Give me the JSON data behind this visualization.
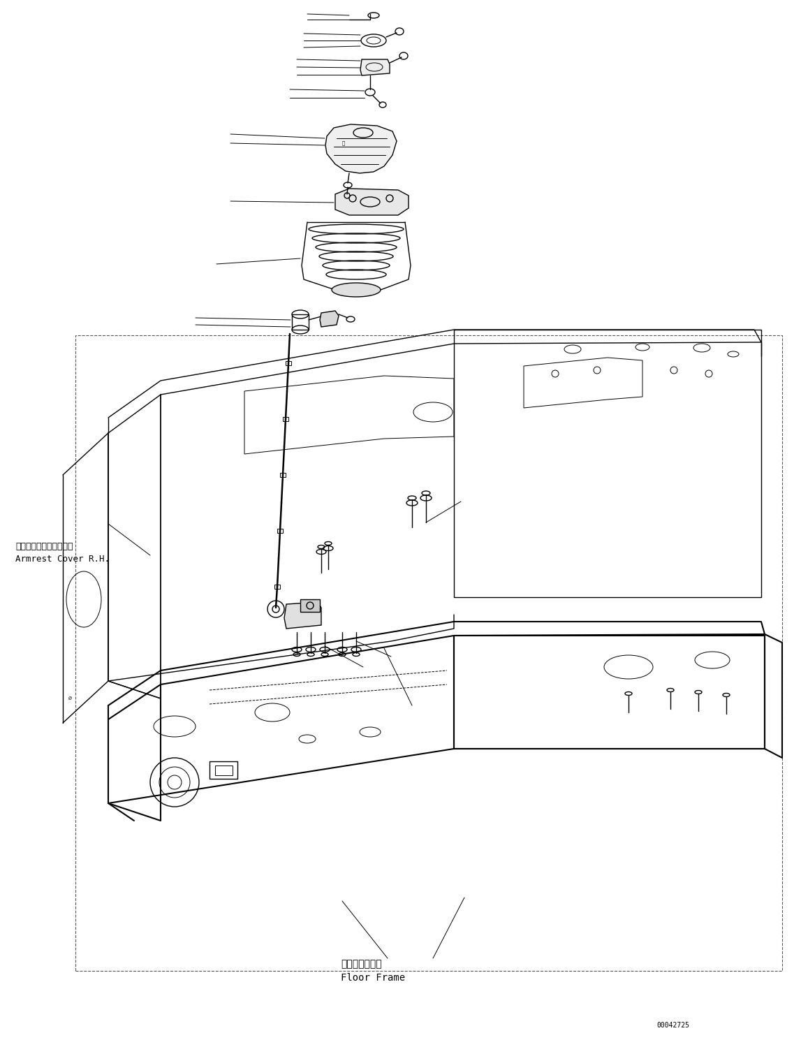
{
  "figure_width": 11.47,
  "figure_height": 14.89,
  "dpi": 100,
  "bg_color": "#ffffff",
  "line_color": "#000000",
  "text_color": "#000000",
  "part_number": "00042725",
  "label_armrest_jp": "アームレストカバー　右",
  "label_armrest_en": "Armrest Cover R.H.",
  "label_floor_jp": "フロアフレーム",
  "label_floor_en": "Floor Frame",
  "font_size_main": 9,
  "font_size_small": 7,
  "font_family": "monospace"
}
